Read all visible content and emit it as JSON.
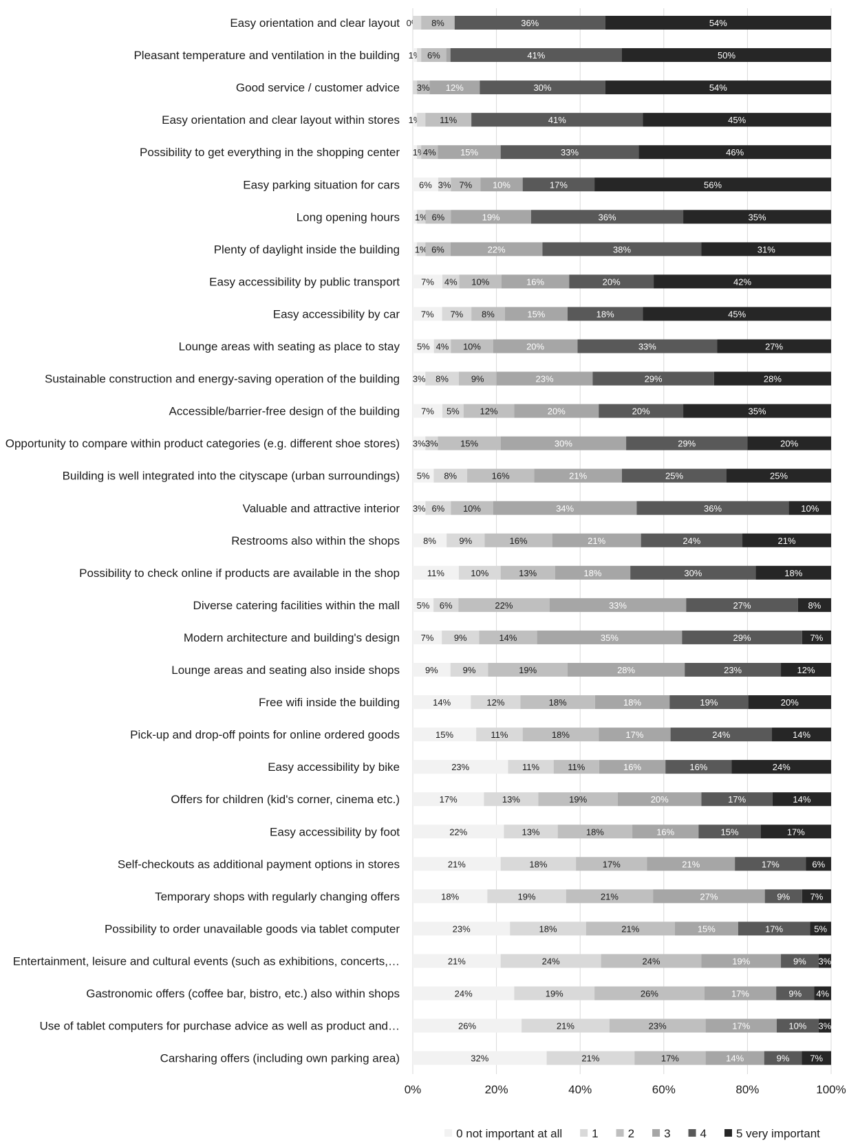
{
  "chart_data": {
    "type": "bar",
    "orientation": "horizontal",
    "stacked": true,
    "percent_stacked": true,
    "grid": true,
    "legend_position": "bottom",
    "xlim": [
      0,
      100
    ],
    "x_ticks": [
      "0%",
      "20%",
      "40%",
      "60%",
      "80%",
      "100%"
    ],
    "legend": [
      {
        "name": "0 not important at all",
        "color": "#f2f2f2"
      },
      {
        "name": "1",
        "color": "#d9d9d9"
      },
      {
        "name": "2",
        "color": "#bfbfbf"
      },
      {
        "name": "3",
        "color": "#a6a6a6"
      },
      {
        "name": "4",
        "color": "#595959"
      },
      {
        "name": "5 very important",
        "color": "#262626"
      }
    ],
    "categories": [
      "Easy orientation and clear layout",
      "Pleasant temperature and ventilation in the building",
      "Good service / customer advice",
      "Easy orientation and clear layout within stores",
      "Possibility to get everything in the shopping center",
      "Easy parking situation for cars",
      "Long opening hours",
      "Plenty of daylight inside the building",
      "Easy accessibility by public transport",
      "Easy accessibility by car",
      "Lounge areas with seating as place to stay",
      "Sustainable construction and energy-saving operation of the building",
      "Accessible/barrier-free design of the building",
      "Opportunity to compare within product categories (e.g. different shoe stores)",
      "Building is well integrated into the cityscape (urban surroundings)",
      "Valuable and attractive interior",
      "Restrooms also within the shops",
      "Possibility to check online if products are available in the shop",
      "Diverse catering facilities within the mall",
      "Modern architecture and building's design",
      "Lounge areas and seating  also inside shops",
      "Free wifi inside the building",
      "Pick-up and drop-off points for online ordered goods",
      "Easy accessibility by bike",
      "Offers for children (kid's corner, cinema etc.)",
      "Easy accessibility by foot",
      "Self-checkouts as  additional payment options in stores",
      "Temporary shops with regularly changing offers",
      "Possibility to order unavailable goods via tablet computer",
      "Entertainment, leisure and cultural events (such as exhibitions, concerts,…",
      "Gastronomic offers (coffee bar, bistro, etc.) also within shops",
      "Use of tablet computers for purchase advice as well as product and…",
      "Carsharing offers (including own parking area)"
    ],
    "series": [
      {
        "name": "0 not important at all",
        "values": [
          0,
          1,
          0,
          1,
          1,
          6,
          1,
          1,
          7,
          7,
          5,
          3,
          7,
          3,
          5,
          3,
          8,
          11,
          5,
          7,
          9,
          14,
          15,
          23,
          17,
          22,
          21,
          18,
          23,
          21,
          24,
          26,
          32
        ]
      },
      {
        "name": "1",
        "values": [
          2,
          1,
          1,
          2,
          1,
          3,
          2,
          2,
          4,
          7,
          4,
          8,
          5,
          3,
          8,
          6,
          9,
          10,
          6,
          9,
          9,
          12,
          11,
          11,
          13,
          13,
          18,
          19,
          18,
          24,
          19,
          21,
          21
        ]
      },
      {
        "name": "2",
        "values": [
          8,
          6,
          3,
          11,
          4,
          7,
          6,
          6,
          10,
          8,
          10,
          9,
          12,
          15,
          16,
          10,
          16,
          13,
          22,
          14,
          19,
          18,
          18,
          11,
          19,
          18,
          17,
          21,
          21,
          24,
          26,
          23,
          17
        ]
      },
      {
        "name": "3",
        "values": [
          0,
          1,
          12,
          0,
          15,
          10,
          19,
          22,
          16,
          15,
          20,
          23,
          20,
          30,
          21,
          34,
          21,
          18,
          33,
          35,
          28,
          18,
          17,
          16,
          20,
          16,
          21,
          27,
          15,
          19,
          17,
          17,
          14
        ]
      },
      {
        "name": "4",
        "values": [
          36,
          41,
          30,
          41,
          33,
          17,
          36,
          38,
          20,
          18,
          33,
          29,
          20,
          29,
          25,
          36,
          24,
          30,
          27,
          29,
          23,
          19,
          24,
          16,
          17,
          15,
          17,
          9,
          17,
          9,
          9,
          10,
          9
        ]
      },
      {
        "name": "5 very important",
        "values": [
          54,
          50,
          54,
          45,
          46,
          56,
          35,
          31,
          42,
          45,
          27,
          28,
          35,
          20,
          25,
          10,
          21,
          18,
          8,
          7,
          12,
          20,
          14,
          24,
          14,
          17,
          6,
          7,
          5,
          3,
          4,
          3,
          7
        ]
      }
    ],
    "data_labels": [
      [
        "0%",
        "",
        "8%",
        "",
        "36%",
        "54%"
      ],
      [
        "1%",
        "",
        "6%",
        "",
        "41%",
        "50%"
      ],
      [
        "",
        "",
        "3%",
        "12%",
        "30%",
        "54%"
      ],
      [
        "1%",
        "",
        "11%",
        "",
        "41%",
        "45%"
      ],
      [
        "",
        "1%",
        "4%",
        "15%",
        "33%",
        "46%"
      ],
      [
        "6%",
        "3%",
        "7%",
        "10%",
        "17%",
        "56%"
      ],
      [
        "",
        "1%",
        "6%",
        "19%",
        "36%",
        "35%"
      ],
      [
        "",
        "1%",
        "6%",
        "22%",
        "38%",
        "31%"
      ],
      [
        "7%",
        "4%",
        "10%",
        "16%",
        "20%",
        "42%"
      ],
      [
        "7%",
        "7%",
        "8%",
        "15%",
        "18%",
        "45%"
      ],
      [
        "5%",
        "4%",
        "10%",
        "20%",
        "33%",
        "27%"
      ],
      [
        "3%",
        "8%",
        "9%",
        "23%",
        "29%",
        "28%"
      ],
      [
        "7%",
        "5%",
        "12%",
        "20%",
        "20%",
        "35%"
      ],
      [
        "3%",
        "3%",
        "15%",
        "30%",
        "29%",
        "20%"
      ],
      [
        "5%",
        "8%",
        "16%",
        "21%",
        "25%",
        "25%"
      ],
      [
        "3%",
        "6%",
        "10%",
        "34%",
        "36%",
        "10%"
      ],
      [
        "8%",
        "9%",
        "16%",
        "21%",
        "24%",
        "21%"
      ],
      [
        "11%",
        "10%",
        "13%",
        "18%",
        "30%",
        "18%"
      ],
      [
        "5%",
        "6%",
        "22%",
        "33%",
        "27%",
        "8%"
      ],
      [
        "7%",
        "9%",
        "14%",
        "35%",
        "29%",
        "7%"
      ],
      [
        "9%",
        "9%",
        "19%",
        "28%",
        "23%",
        "12%"
      ],
      [
        "14%",
        "12%",
        "18%",
        "18%",
        "19%",
        "20%"
      ],
      [
        "15%",
        "11%",
        "18%",
        "17%",
        "24%",
        "14%"
      ],
      [
        "23%",
        "11%",
        "11%",
        "16%",
        "16%",
        "24%"
      ],
      [
        "17%",
        "13%",
        "19%",
        "20%",
        "17%",
        "14%"
      ],
      [
        "22%",
        "13%",
        "18%",
        "16%",
        "15%",
        "17%"
      ],
      [
        "21%",
        "18%",
        "17%",
        "21%",
        "17%",
        "6%"
      ],
      [
        "18%",
        "19%",
        "21%",
        "27%",
        "9%",
        "7%"
      ],
      [
        "23%",
        "18%",
        "21%",
        "15%",
        "17%",
        "5%"
      ],
      [
        "21%",
        "24%",
        "24%",
        "19%",
        "9%",
        "3%"
      ],
      [
        "24%",
        "19%",
        "26%",
        "17%",
        "9%",
        "4%"
      ],
      [
        "26%",
        "21%",
        "23%",
        "17%",
        "10%",
        "3%"
      ],
      [
        "32%",
        "21%",
        "17%",
        "14%",
        "9%",
        "7%"
      ]
    ]
  }
}
